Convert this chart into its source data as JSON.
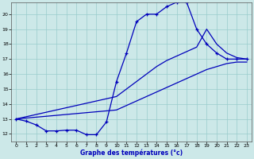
{
  "xlabel": "Graphe des températures (°c)",
  "xlim": [
    -0.5,
    23.5
  ],
  "ylim": [
    11.5,
    20.8
  ],
  "yticks": [
    12,
    13,
    14,
    15,
    16,
    17,
    18,
    19,
    20
  ],
  "xticks": [
    0,
    1,
    2,
    3,
    4,
    5,
    6,
    7,
    8,
    9,
    10,
    11,
    12,
    13,
    14,
    15,
    16,
    17,
    18,
    19,
    20,
    21,
    22,
    23
  ],
  "background_color": "#cce8e8",
  "grid_color": "#99cccc",
  "line_color": "#0000bb",
  "line1_x": [
    0,
    1,
    2,
    3,
    4,
    5,
    6,
    7,
    8,
    9,
    10,
    11,
    12,
    13,
    14,
    15,
    16,
    17,
    18,
    19,
    20,
    21,
    22,
    23
  ],
  "line1_y": [
    13.0,
    12.85,
    12.6,
    12.2,
    12.2,
    12.25,
    12.25,
    11.95,
    11.95,
    12.8,
    15.5,
    17.4,
    19.5,
    20.0,
    20.0,
    20.5,
    20.8,
    20.8,
    19.0,
    18.0,
    17.4,
    17.0,
    17.0,
    17.0
  ],
  "line2_x": [
    0,
    10,
    11,
    12,
    13,
    14,
    15,
    16,
    17,
    18,
    19,
    20,
    21,
    22,
    23
  ],
  "line2_y": [
    13.0,
    13.6,
    13.9,
    14.2,
    14.5,
    14.8,
    15.1,
    15.4,
    15.7,
    16.0,
    16.3,
    16.5,
    16.7,
    16.8,
    16.8
  ],
  "line3_x": [
    0,
    10,
    11,
    12,
    13,
    14,
    15,
    16,
    17,
    18,
    19,
    20,
    21,
    22,
    23
  ],
  "line3_y": [
    13.0,
    14.5,
    15.0,
    15.5,
    16.0,
    16.5,
    16.9,
    17.2,
    17.5,
    17.8,
    19.0,
    18.0,
    17.4,
    17.1,
    17.0
  ]
}
